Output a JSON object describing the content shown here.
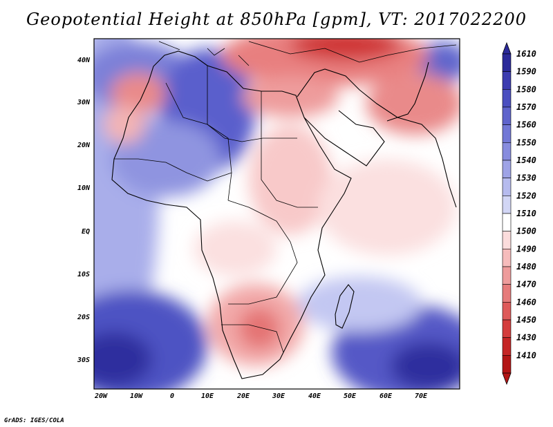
{
  "title": "Geopotential Height at 850hPa [gpm], VT: 2017022200",
  "credit": "GrADS: IGES/COLA",
  "map": {
    "region": "Africa, Middle East and western Indian Ocean",
    "lon_range": [
      -23,
      80
    ],
    "lat_range": [
      -37,
      45
    ],
    "x_ticks": [
      "20W",
      "10W",
      "0",
      "10E",
      "20E",
      "30E",
      "40E",
      "50E",
      "60E",
      "70E"
    ],
    "y_ticks": [
      "40N",
      "30N",
      "20N",
      "10N",
      "EQ",
      "10S",
      "20S",
      "30S"
    ]
  },
  "colorbar": {
    "levels": [
      "1610",
      "1590",
      "1580",
      "1570",
      "1560",
      "1550",
      "1540",
      "1530",
      "1520",
      "1510",
      "1500",
      "1490",
      "1480",
      "1470",
      "1460",
      "1450",
      "1430",
      "1410"
    ],
    "colors": [
      "#2b2a9a",
      "#3c3cb0",
      "#4b4fc0",
      "#5f64cc",
      "#7278d6",
      "#878cde",
      "#9ea3e6",
      "#b6bbee",
      "#d2d6f5",
      "#ffffff",
      "#fbdcdc",
      "#f6bcbc",
      "#ee9c9c",
      "#e67b7b",
      "#de5a5a",
      "#d43d3d",
      "#c52626",
      "#b31616"
    ]
  }
}
